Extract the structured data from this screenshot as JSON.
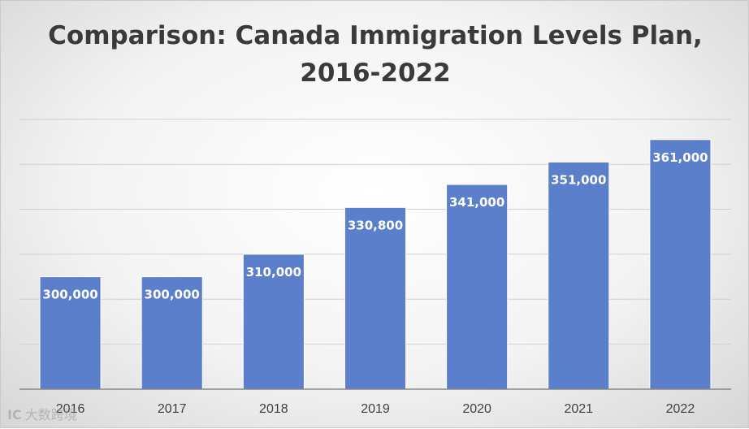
{
  "chart_data": {
    "type": "bar",
    "title_line1": "Comparison: Canada Immigration Levels Plan,",
    "title_line2": "2016-2022",
    "categories": [
      "2016",
      "2017",
      "2018",
      "2019",
      "2020",
      "2021",
      "2022"
    ],
    "values": [
      300000,
      300000,
      310000,
      330800,
      341000,
      351000,
      361000
    ],
    "data_labels": [
      "300,000",
      "300,000",
      "310,000",
      "330,800",
      "341,000",
      "351,000",
      "361,000"
    ],
    "xlabel": "",
    "ylabel": "",
    "ylim": [
      250000,
      375000
    ],
    "gridline_step": 20000,
    "y_tick_labels_visible": false,
    "grid": true,
    "bar_color": "#5B7FCA",
    "bar_border_color": "#ffffff"
  },
  "watermark": {
    "logo": "IC",
    "text": "大数跨境"
  }
}
